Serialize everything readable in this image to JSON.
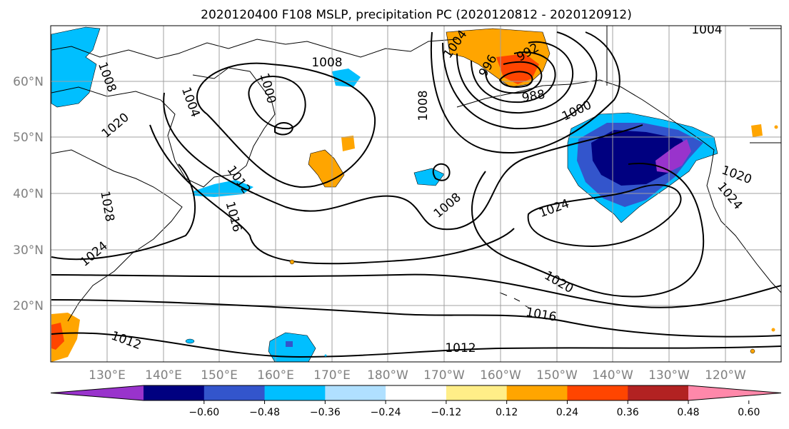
{
  "title": "2020120400 F108 MSLP, precipitation PC (2020120812 - 2020120912)",
  "map": {
    "lat_labels": [
      "60°N",
      "50°N",
      "40°N",
      "30°N",
      "20°N"
    ],
    "lon_labels": [
      "130°E",
      "140°E",
      "150°E",
      "160°E",
      "170°E",
      "180°W",
      "170°W",
      "160°W",
      "150°W",
      "140°W",
      "130°W",
      "120°W"
    ],
    "gridlines": true,
    "isobar_labels": [
      "1008",
      "1008",
      "1004",
      "1020",
      "1000",
      "1012",
      "1016",
      "1028",
      "1024",
      "1012",
      "1004",
      "996",
      "992",
      "988",
      "1000",
      "1008",
      "1008",
      "1024",
      "1020",
      "1016",
      "1012",
      "1004",
      "1020",
      "1024"
    ]
  },
  "colorbar": {
    "ticks": [
      "−0.60",
      "−0.48",
      "−0.36",
      "−0.24",
      "−0.12",
      "0.12",
      "0.24",
      "0.36",
      "0.48",
      "0.60"
    ],
    "colors": [
      "#9933cc",
      "#000080",
      "#3355cc",
      "#00bfff",
      "#b0e0ff",
      "#ffffff",
      "#ffee88",
      "#ffa500",
      "#ff4500",
      "#b22222",
      "#ff88aa"
    ]
  }
}
